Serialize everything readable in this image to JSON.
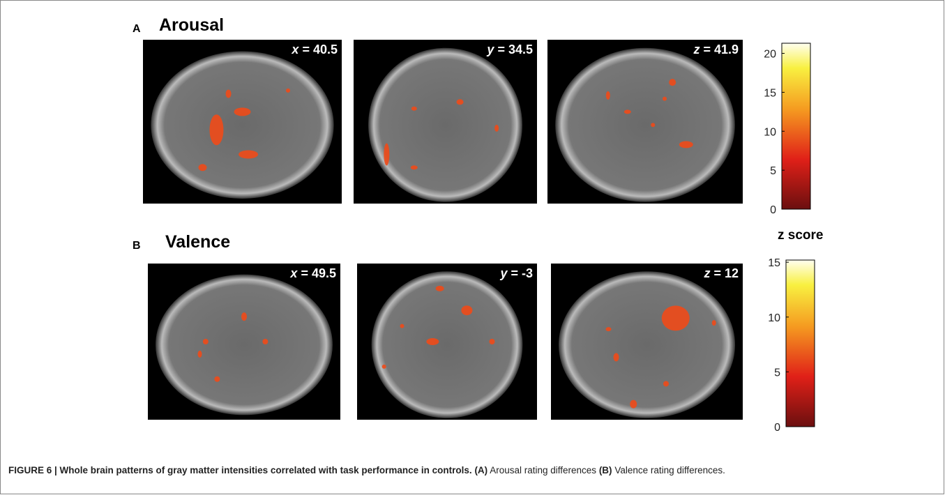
{
  "panels": [
    {
      "letter": "A",
      "title": "Arousal",
      "slices": [
        {
          "axis": "x",
          "coord": "= 40.5"
        },
        {
          "axis": "y",
          "coord": "= 34.5"
        },
        {
          "axis": "z",
          "coord": "= 41.9"
        }
      ],
      "colorbar": {
        "lim": [
          0,
          21.3
        ],
        "ticks": [
          0,
          5,
          10,
          15,
          20
        ]
      }
    },
    {
      "letter": "B",
      "title": "Valence",
      "slices": [
        {
          "axis": "x",
          "coord": "= 49.5"
        },
        {
          "axis": "y",
          "coord": "= -3"
        },
        {
          "axis": "z",
          "coord": "= 12"
        }
      ],
      "colorbar": {
        "lim": [
          0,
          15.2
        ],
        "ticks": [
          0,
          5,
          10,
          15
        ]
      }
    }
  ],
  "colorbar_label": "z score",
  "caption": {
    "figure": "FIGURE 6 | Whole brain patterns of gray matter intensities correlated with task performance in controls.",
    "a_label": "(A)",
    "a_text": "Arousal rating differences",
    "b_label": "(B)",
    "b_text": "Valence rating differences."
  }
}
